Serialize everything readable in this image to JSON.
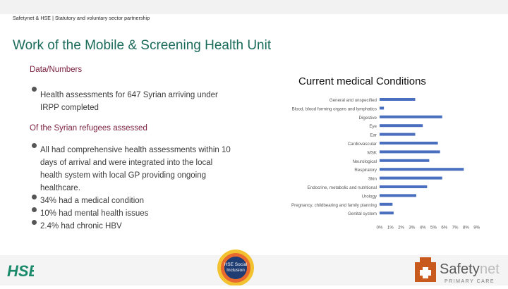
{
  "header": {
    "breadcrumb": "Safetynet & HSE | Statutory and voluntary sector partnership"
  },
  "page": {
    "title": "Work of the Mobile & Screening Health Unit"
  },
  "left": {
    "heading1": "Data/Numbers",
    "bullet1_line1": "Health assessments for 647 Syrian arriving under",
    "bullet1_line2": "IRPP completed",
    "heading2": "Of the Syrian refugees assessed",
    "bullet2_lines": [
      "All had comprehensive health assessments within 10",
      "days of arrival and were integrated into the local",
      "health system with local GP providing ongoing",
      "healthcare."
    ],
    "bullet3": "34% had a medical condition",
    "bullet4": "10% had mental health issues",
    "bullet5": "2.4% had chronic HBV"
  },
  "logos": {
    "hse": "HSE",
    "social_inclusion_line1": "HSE Social",
    "social_inclusion_line2": "Inclusion",
    "safetynet_word_a": "Safety",
    "safetynet_word_b": "net",
    "safetynet_tagline": "PRIMARY CARE"
  },
  "colors": {
    "title": "#1a6b5a",
    "subhead": "#7a1f3d",
    "bar": "#4a6fbf"
  },
  "chart_data": {
    "type": "bar",
    "orientation": "horizontal",
    "title": "Current medical Conditions",
    "categories": [
      "General and unspecified",
      "Blood, blood forming organs and lymphatics",
      "Digestive",
      "Eye",
      "Ear",
      "Cardiovascular",
      "MSK",
      "Neurological",
      "Respiratory",
      "Skin",
      "Endocrine, metabolic and nutritional",
      "Urology",
      "Pregnancy, childbearing and family planning",
      "Genital system"
    ],
    "values": [
      3.3,
      0.4,
      5.8,
      4.0,
      3.3,
      5.4,
      5.6,
      4.6,
      7.8,
      5.8,
      4.4,
      3.4,
      1.2,
      1.3
    ],
    "x_ticks": [
      "0%",
      "1%",
      "2%",
      "3%",
      "4%",
      "5%",
      "6%",
      "7%",
      "8%",
      "9%"
    ],
    "xlim": [
      0,
      9
    ],
    "grid": false,
    "legend": "none"
  }
}
